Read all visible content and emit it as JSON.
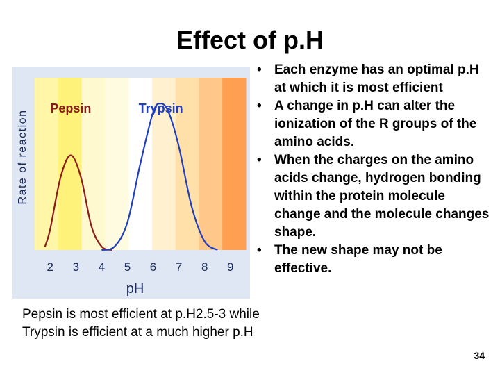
{
  "slide": {
    "title": "Effect of p.H",
    "page_number": "34"
  },
  "bullets": [
    "Each enzyme has an optimal p.H at which it is most efficient",
    "A change in p.H can alter the ionization of the R groups of the amino acids.",
    "When the charges on the amino acids change, hydrogen bonding within the protein molecule change and the molecule changes shape.",
    "The new shape may not be effective."
  ],
  "caption": "Pepsin is most efficient at p.H2.5-3 while Trypsin is efficient at a much higher p.H",
  "chart_data": {
    "type": "line",
    "xlabel": "pH",
    "ylabel": "Rate of reaction",
    "x_ticks": [
      "2",
      "3",
      "4",
      "5",
      "6",
      "7",
      "8",
      "9"
    ],
    "xlim": [
      1.4,
      9.6
    ],
    "ylim": [
      0,
      1
    ],
    "series": [
      {
        "name": "Pepsin",
        "color": "#8b1a1a",
        "peak_x": 2.8,
        "peak_y": 0.55,
        "x": [
          1.8,
          2.0,
          2.4,
          2.8,
          3.2,
          3.6,
          4.0,
          4.4
        ],
        "y": [
          0.02,
          0.12,
          0.42,
          0.55,
          0.42,
          0.14,
          0.02,
          0.0
        ]
      },
      {
        "name": "Trypsin",
        "color": "#1f3fbf",
        "peak_x": 6.3,
        "peak_y": 0.85,
        "x": [
          4.0,
          4.5,
          5.0,
          5.5,
          6.0,
          6.3,
          6.6,
          7.0,
          7.5,
          8.0,
          8.5
        ],
        "y": [
          0.0,
          0.02,
          0.16,
          0.5,
          0.8,
          0.85,
          0.8,
          0.6,
          0.25,
          0.05,
          0.0
        ]
      }
    ],
    "background_bands": [
      "#fff6a8",
      "#fff27a",
      "#fff9cf",
      "#fffbe0",
      "#ffffff",
      "#fff1cf",
      "#ffe0a8",
      "#ffc88a",
      "#ff9f52"
    ]
  }
}
